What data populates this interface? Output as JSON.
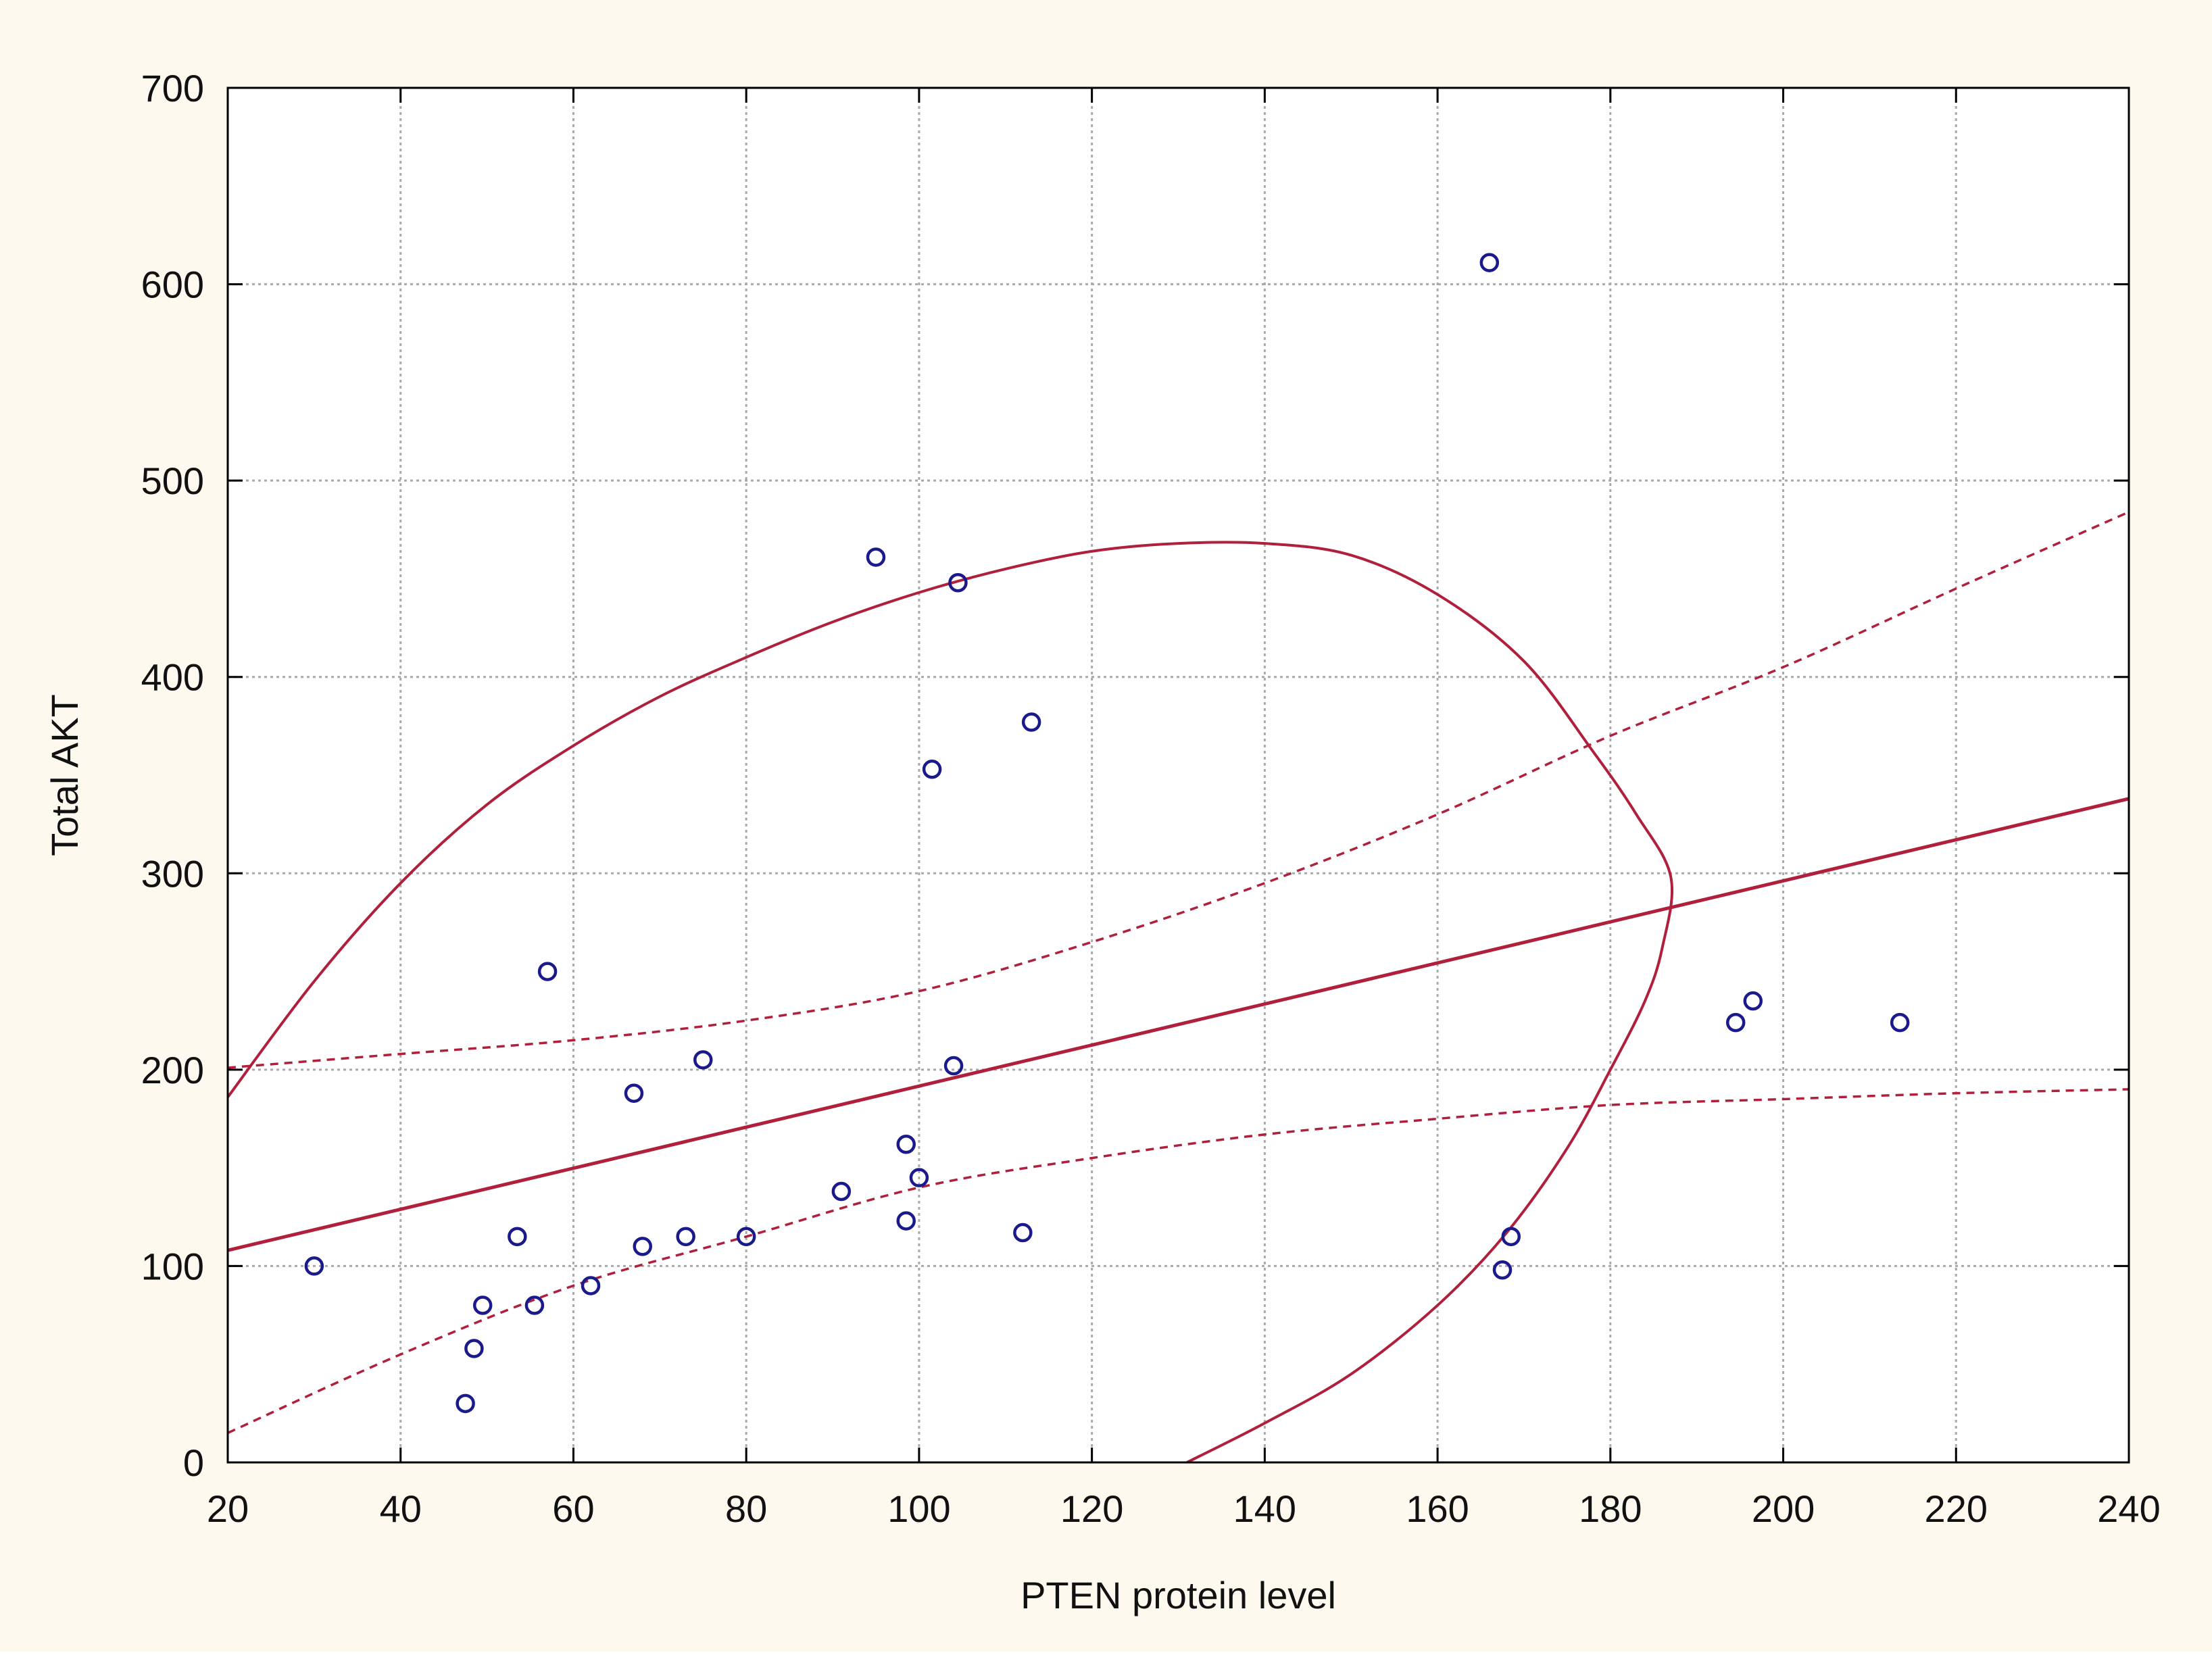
{
  "colors": {
    "outer_background": "#fdf9ef",
    "plot_background": "#ffffff",
    "axis": "#000000",
    "grid": "#a9a9a9",
    "point": "#1a1a8c",
    "fit_line": "#b0203c"
  },
  "chart_data": {
    "type": "scatter",
    "title": "",
    "xlabel": "PTEN protein level",
    "ylabel": "Total AKT",
    "xlim": [
      20,
      240
    ],
    "ylim": [
      0,
      700
    ],
    "xticks": [
      20,
      40,
      60,
      80,
      100,
      120,
      140,
      160,
      180,
      200,
      220,
      240
    ],
    "yticks": [
      0,
      100,
      200,
      300,
      400,
      500,
      600,
      700
    ],
    "grid": true,
    "legend": "none",
    "marker": "open-circle",
    "points": [
      [
        30,
        100
      ],
      [
        47.5,
        30
      ],
      [
        48.5,
        58
      ],
      [
        49.5,
        80
      ],
      [
        53.5,
        115
      ],
      [
        55.5,
        80
      ],
      [
        57,
        250
      ],
      [
        62,
        90
      ],
      [
        67,
        188
      ],
      [
        68,
        110
      ],
      [
        73,
        115
      ],
      [
        75,
        205
      ],
      [
        80,
        115
      ],
      [
        91,
        138
      ],
      [
        95,
        461
      ],
      [
        98.5,
        162
      ],
      [
        98.5,
        123
      ],
      [
        100,
        145
      ],
      [
        101.5,
        353
      ],
      [
        104,
        202
      ],
      [
        104.5,
        448
      ],
      [
        112,
        117
      ],
      [
        113,
        377
      ],
      [
        166,
        611
      ],
      [
        167.5,
        98
      ],
      [
        168.5,
        115
      ],
      [
        194.5,
        224
      ],
      [
        196.5,
        235
      ],
      [
        213.5,
        224
      ]
    ],
    "regression_line": {
      "x": [
        20,
        240
      ],
      "y": [
        108,
        338
      ]
    },
    "confidence_band_upper": {
      "x": [
        20,
        40,
        60,
        80,
        100,
        120,
        140,
        160,
        180,
        200,
        220,
        240
      ],
      "y": [
        201,
        208,
        215,
        225,
        240,
        265,
        295,
        330,
        370,
        405,
        445,
        484
      ]
    },
    "confidence_band_lower": {
      "x": [
        20,
        40,
        60,
        80,
        100,
        120,
        140,
        160,
        180,
        200,
        220,
        240
      ],
      "y": [
        15,
        55,
        90,
        115,
        140,
        155,
        167,
        175,
        182,
        185,
        188,
        190
      ]
    },
    "ellipse": {
      "x": [
        20,
        30,
        40,
        50,
        60,
        70,
        80,
        90,
        100,
        110,
        120,
        130,
        140,
        150,
        160,
        170,
        178,
        183,
        187,
        186,
        184,
        180,
        175,
        168,
        160,
        150,
        140,
        131
      ],
      "y": [
        186,
        245,
        295,
        335,
        365,
        390,
        410,
        428,
        443,
        455,
        464,
        468,
        468,
        462,
        442,
        408,
        362,
        330,
        298,
        262,
        235,
        200,
        160,
        117,
        80,
        45,
        20,
        0
      ]
    }
  }
}
